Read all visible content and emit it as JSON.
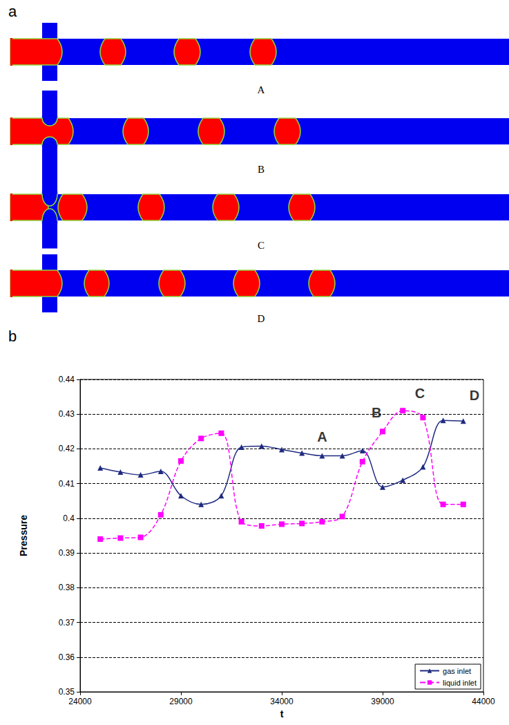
{
  "figure": {
    "panels": [
      {
        "label": "a",
        "snapshots": [
          "A",
          "B",
          "C",
          "D"
        ]
      },
      {
        "label": "b"
      }
    ]
  },
  "chart_data": {
    "type": "line",
    "x_label": "t",
    "y_label": "Pressure",
    "x": [
      25000,
      26000,
      27000,
      28000,
      29000,
      30000,
      31000,
      32000,
      33000,
      34000,
      35000,
      36000,
      37000,
      38000,
      39000,
      40000,
      41000,
      42000,
      43000
    ],
    "series": [
      {
        "name": "gas inlet",
        "color": "#1f2a80",
        "marker": "triangle",
        "line_style": "solid",
        "values": [
          0.4145,
          0.4133,
          0.4125,
          0.4135,
          0.4065,
          0.404,
          0.4065,
          0.4205,
          0.4208,
          0.4198,
          0.4188,
          0.418,
          0.418,
          0.4195,
          0.409,
          0.411,
          0.4148,
          0.4282,
          0.428
        ]
      },
      {
        "name": "liquid inlet",
        "color": "#ff00ff",
        "marker": "square",
        "line_style": "dashed",
        "values": [
          0.394,
          0.3943,
          0.3945,
          0.401,
          0.4165,
          0.423,
          0.4245,
          0.399,
          0.3978,
          0.3983,
          0.3985,
          0.399,
          0.4005,
          0.4163,
          0.425,
          0.431,
          0.429,
          0.404,
          0.404
        ]
      }
    ],
    "xlim": [
      24000,
      44000
    ],
    "xticks": [
      24000,
      29000,
      34000,
      39000,
      44000
    ],
    "ylim": [
      0.35,
      0.44
    ],
    "yticks": [
      0.35,
      0.36,
      0.37,
      0.38,
      0.39,
      0.4,
      0.41,
      0.42,
      0.43,
      0.44
    ],
    "grid": true,
    "legend": "lower right",
    "annotations": [
      {
        "text": "A",
        "x": 36000,
        "y": 0.4235
      },
      {
        "text": "B",
        "x": 38700,
        "y": 0.4305
      },
      {
        "text": "C",
        "x": 40850,
        "y": 0.436
      },
      {
        "text": "D",
        "x": 43550,
        "y": 0.4355
      }
    ]
  }
}
